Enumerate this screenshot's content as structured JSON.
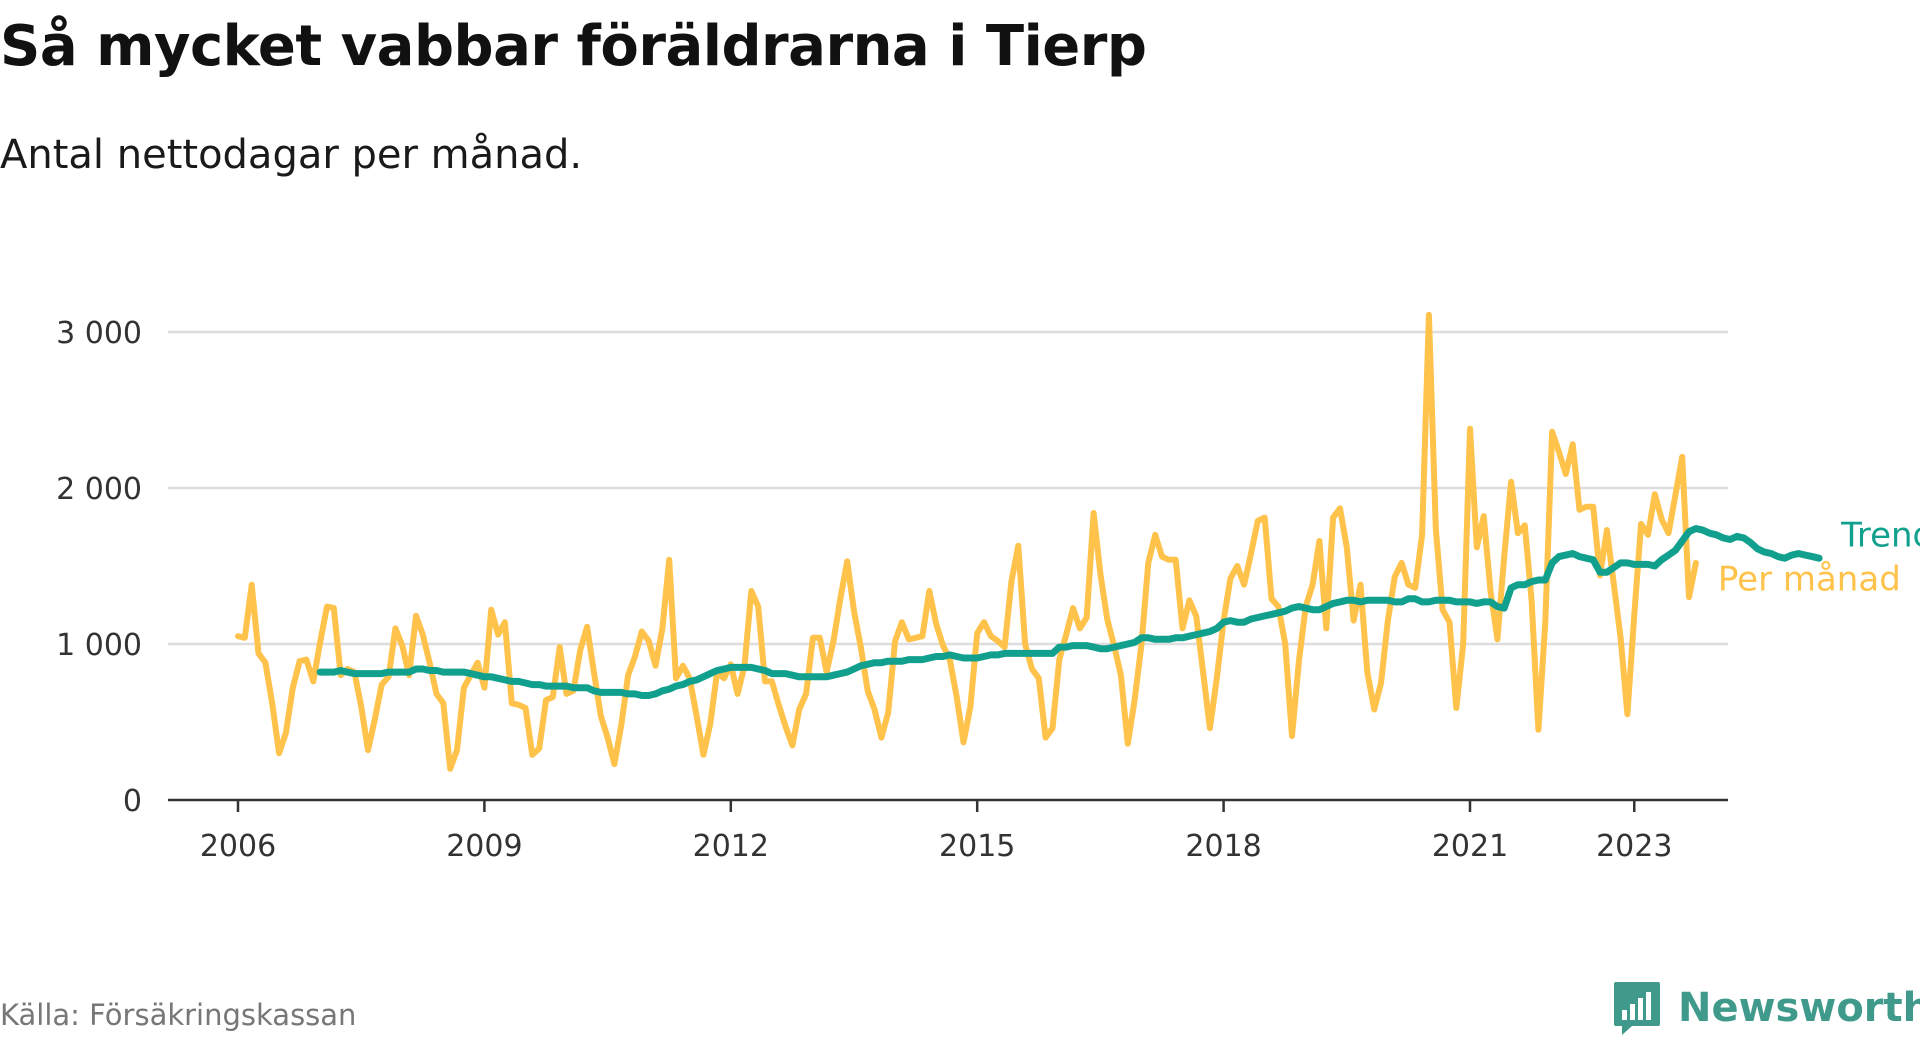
{
  "title": "Så mycket vabbar föräldrarna i Tierp",
  "subtitle": "Antal nettodagar per månad.",
  "source": "Källa: Försäkringskassan",
  "brand": {
    "name": "Newsworthy",
    "icon": "bar-chart-chat-icon",
    "color": "#3f9a8c"
  },
  "chart_data": {
    "type": "line",
    "ylim": [
      0,
      3000
    ],
    "y_ticks": [
      {
        "value": 0,
        "label": "0"
      },
      {
        "value": 1000,
        "label": "1 000"
      },
      {
        "value": 2000,
        "label": "2 000"
      },
      {
        "value": 3000,
        "label": "3 000"
      }
    ],
    "x_ticks": [
      {
        "value": 2006,
        "label": "2006"
      },
      {
        "value": 2009,
        "label": "2009"
      },
      {
        "value": 2012,
        "label": "2012"
      },
      {
        "value": 2015,
        "label": "2015"
      },
      {
        "value": 2018,
        "label": "2018"
      },
      {
        "value": 2021,
        "label": "2021"
      },
      {
        "value": 2023,
        "label": "2023"
      }
    ],
    "grid": true,
    "colors": {
      "per_month": "#ffc24b",
      "trend": "#12a08e",
      "grid": "#dddddd",
      "axis": "#333333"
    },
    "series": [
      {
        "name": "Per månad",
        "color": "#ffc24b",
        "start_year": 2006,
        "values": [
          1050,
          1040,
          1380,
          940,
          880,
          620,
          300,
          430,
          720,
          890,
          900,
          760,
          1010,
          1240,
          1230,
          800,
          840,
          820,
          600,
          320,
          520,
          740,
          790,
          1100,
          990,
          800,
          1180,
          1060,
          880,
          680,
          620,
          200,
          320,
          720,
          800,
          880,
          720,
          1220,
          1060,
          1140,
          620,
          610,
          590,
          290,
          330,
          640,
          660,
          980,
          680,
          700,
          960,
          1110,
          820,
          540,
          400,
          230,
          480,
          800,
          920,
          1080,
          1020,
          860,
          1100,
          1540,
          780,
          860,
          780,
          540,
          290,
          490,
          820,
          780,
          870,
          680,
          860,
          1340,
          1240,
          760,
          760,
          610,
          470,
          350,
          580,
          680,
          1040,
          1040,
          820,
          1020,
          1290,
          1530,
          1210,
          980,
          700,
          580,
          400,
          560,
          1020,
          1140,
          1030,
          1040,
          1050,
          1340,
          1130,
          990,
          900,
          660,
          370,
          600,
          1070,
          1140,
          1050,
          1020,
          980,
          1400,
          1630,
          1000,
          840,
          780,
          400,
          460,
          900,
          1060,
          1230,
          1100,
          1170,
          1840,
          1450,
          1160,
          990,
          800,
          360,
          640,
          1000,
          1520,
          1700,
          1560,
          1540,
          1540,
          1100,
          1280,
          1180,
          820,
          460,
          780,
          1150,
          1420,
          1500,
          1380,
          1580,
          1790,
          1810,
          1290,
          1240,
          1000,
          410,
          890,
          1240,
          1380,
          1660,
          1100,
          1810,
          1870,
          1620,
          1150,
          1380,
          820,
          580,
          750,
          1150,
          1430,
          1520,
          1380,
          1360,
          1700,
          3110,
          1740,
          1220,
          1140,
          590,
          1000,
          2380,
          1620,
          1820,
          1340,
          1030,
          1560,
          2040,
          1710,
          1760,
          1280,
          450,
          1140,
          2360,
          2230,
          2090,
          2280,
          1860,
          1880,
          1880,
          1440,
          1730,
          1390,
          1040,
          550,
          1190,
          1770,
          1700,
          1960,
          1800,
          1710,
          1950,
          2200,
          1300,
          1520
        ]
      },
      {
        "name": "Trend",
        "color": "#12a08e",
        "start_year": 2007,
        "values": [
          820,
          820,
          820,
          830,
          820,
          810,
          810,
          810,
          810,
          810,
          820,
          820,
          820,
          820,
          840,
          840,
          830,
          830,
          820,
          820,
          820,
          820,
          810,
          800,
          790,
          790,
          780,
          770,
          760,
          760,
          750,
          740,
          740,
          730,
          730,
          730,
          730,
          720,
          720,
          720,
          700,
          690,
          690,
          690,
          690,
          680,
          680,
          670,
          670,
          680,
          700,
          710,
          730,
          740,
          760,
          770,
          790,
          810,
          830,
          840,
          850,
          850,
          850,
          850,
          840,
          830,
          810,
          810,
          810,
          800,
          790,
          790,
          790,
          790,
          790,
          800,
          810,
          820,
          840,
          860,
          870,
          880,
          880,
          890,
          890,
          890,
          900,
          900,
          900,
          910,
          920,
          920,
          930,
          920,
          910,
          910,
          910,
          920,
          930,
          930,
          940,
          940,
          940,
          940,
          940,
          940,
          940,
          940,
          980,
          980,
          990,
          990,
          990,
          980,
          970,
          970,
          980,
          990,
          1000,
          1010,
          1040,
          1040,
          1030,
          1030,
          1030,
          1040,
          1040,
          1050,
          1060,
          1070,
          1080,
          1100,
          1140,
          1150,
          1140,
          1140,
          1160,
          1170,
          1180,
          1190,
          1200,
          1210,
          1230,
          1240,
          1230,
          1220,
          1220,
          1240,
          1260,
          1270,
          1280,
          1280,
          1270,
          1280,
          1280,
          1280,
          1280,
          1270,
          1270,
          1290,
          1290,
          1270,
          1270,
          1280,
          1280,
          1280,
          1270,
          1270,
          1270,
          1260,
          1270,
          1270,
          1240,
          1230,
          1360,
          1380,
          1380,
          1400,
          1410,
          1410,
          1520,
          1560,
          1570,
          1580,
          1560,
          1550,
          1540,
          1460,
          1460,
          1490,
          1520,
          1520,
          1510,
          1510,
          1510,
          1500,
          1540,
          1570,
          1600,
          1660,
          1720,
          1740,
          1730,
          1710,
          1700,
          1680,
          1670,
          1690,
          1680,
          1650,
          1610,
          1590,
          1580,
          1560,
          1550,
          1570,
          1580,
          1570,
          1560,
          1550
        ]
      }
    ]
  }
}
